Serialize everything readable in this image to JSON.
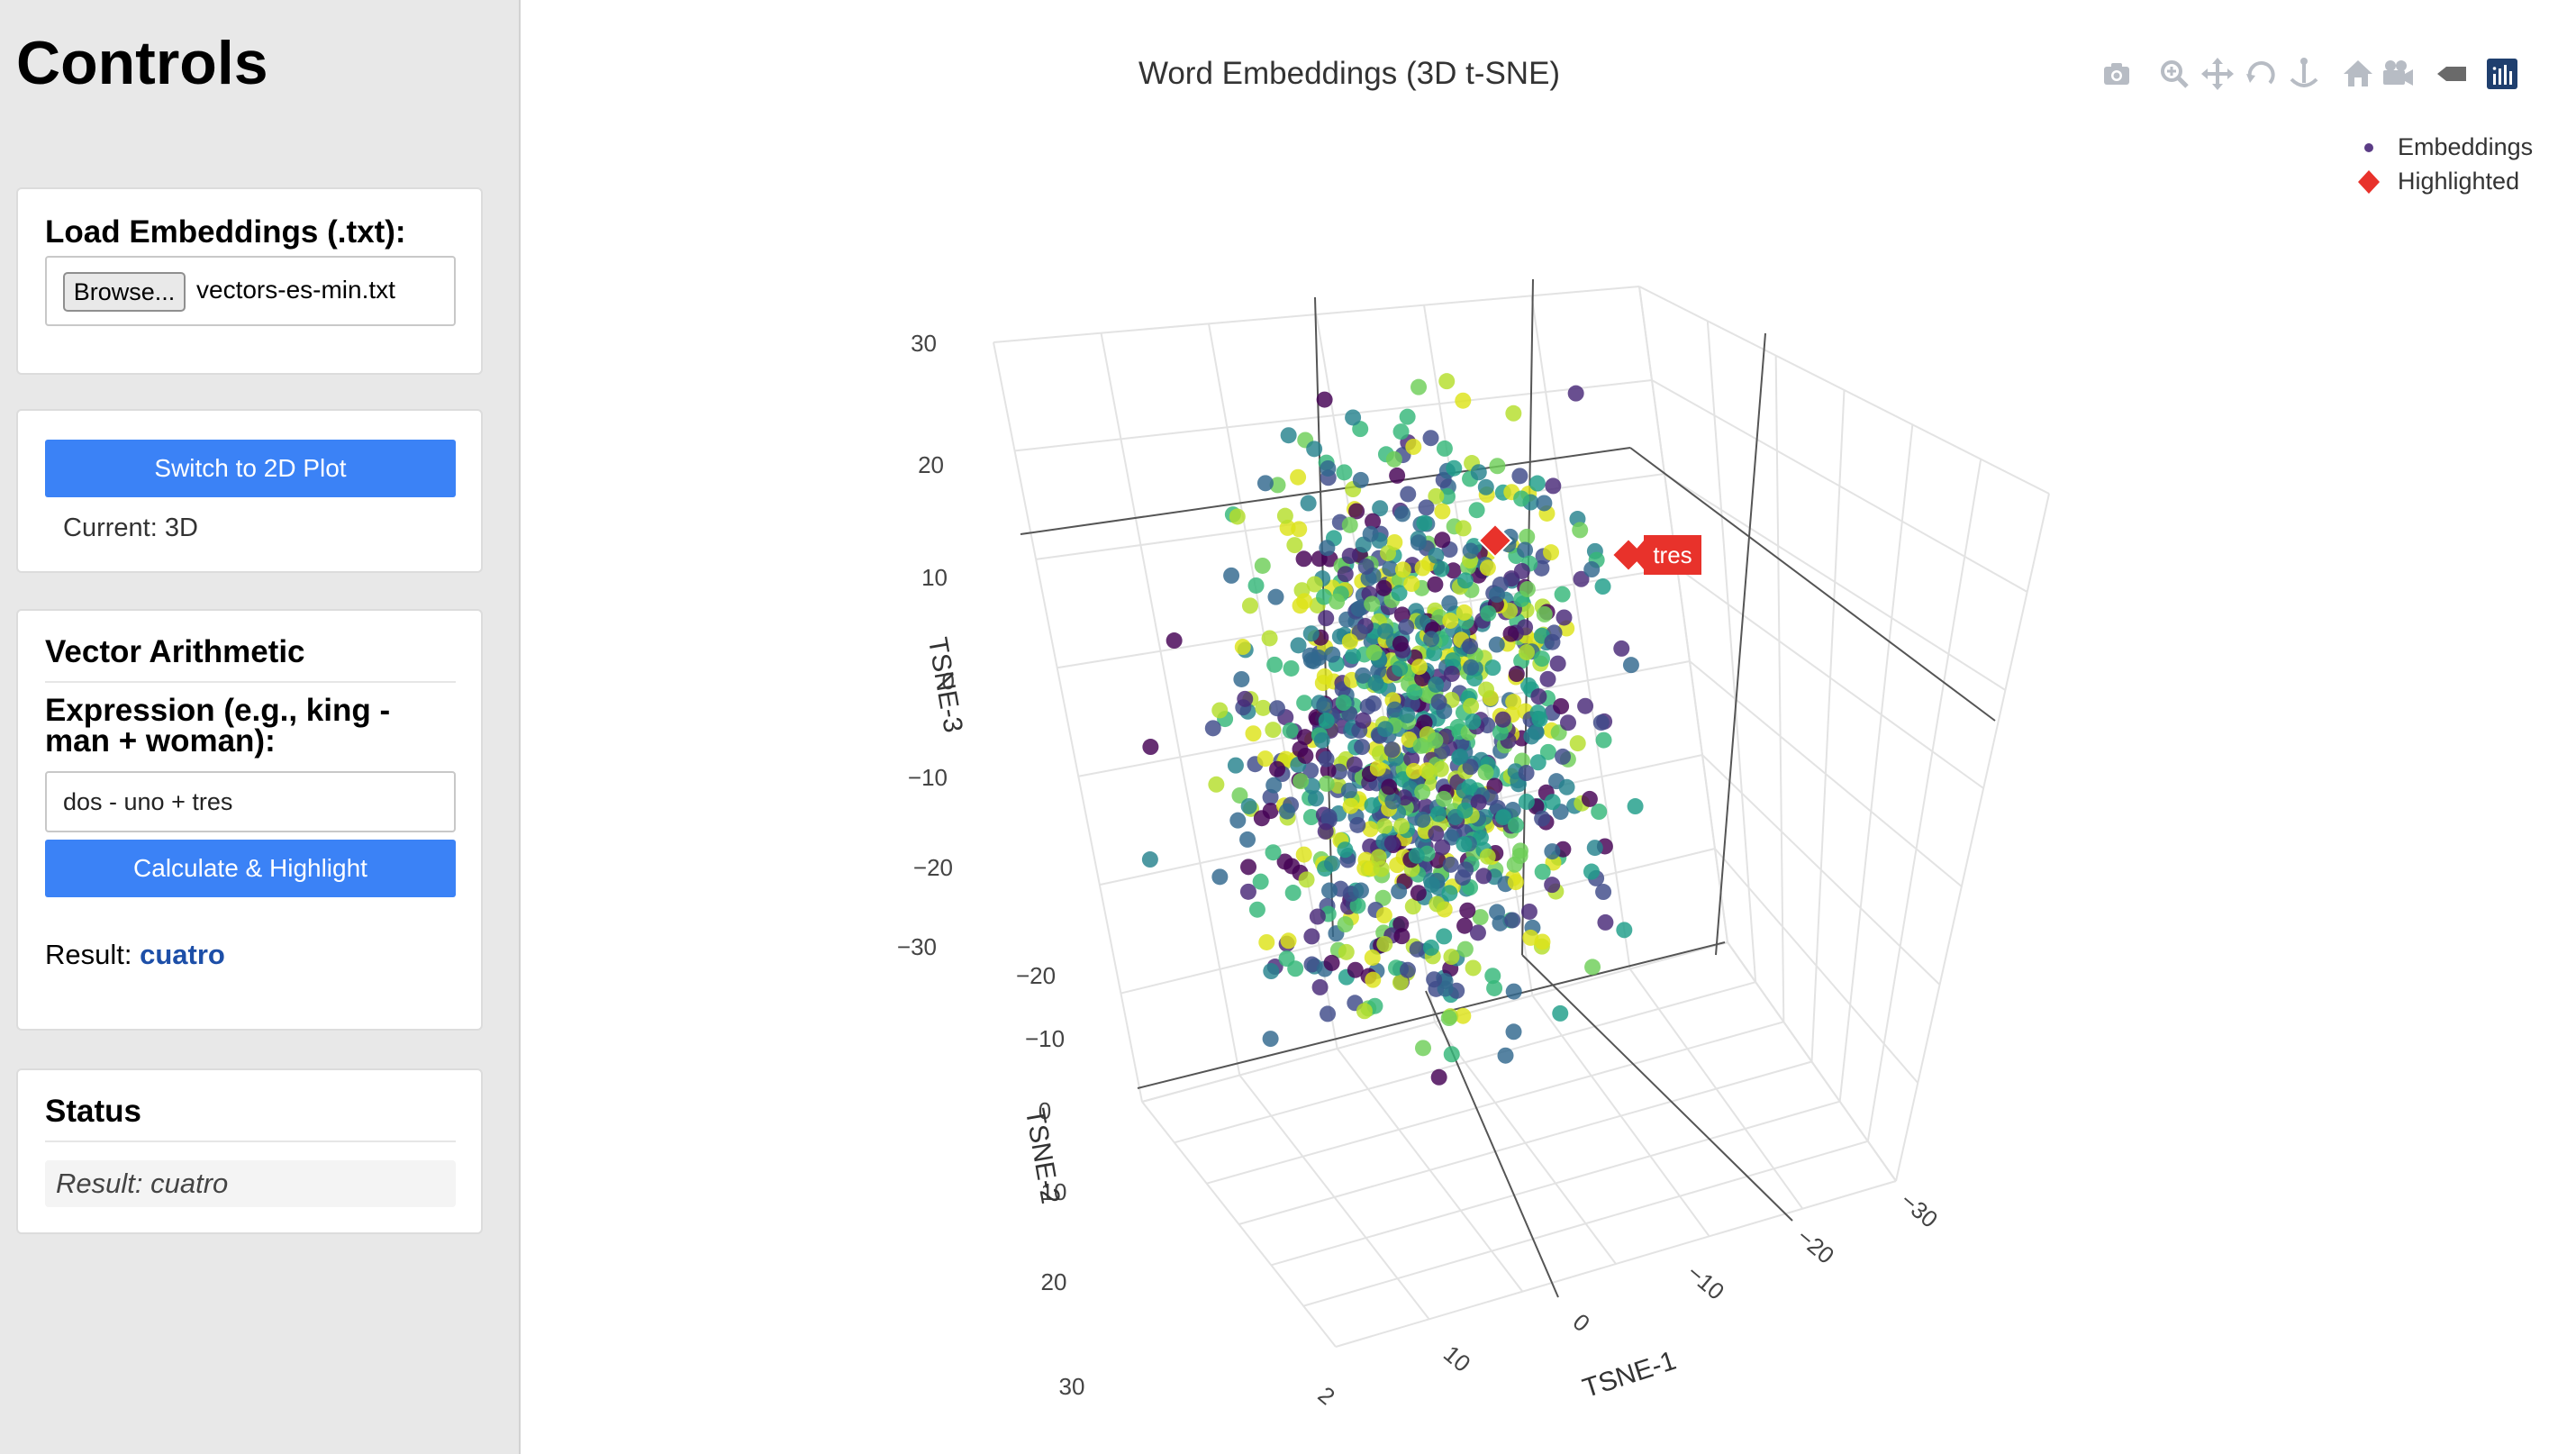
{
  "sidebar": {
    "title": "Controls",
    "load": {
      "label": "Load Embeddings (.txt):",
      "browse_label": "Browse...",
      "file_name": "vectors-es-min.txt"
    },
    "view": {
      "switch_label": "Switch to 2D Plot",
      "current": "Current: 3D"
    },
    "vector": {
      "title": "Vector Arithmetic",
      "expression_label": "Expression (e.g., king - man + woman):",
      "expression_value": "dos - uno + tres",
      "calculate_label": "Calculate & Highlight",
      "result_prefix": "Result: ",
      "result_word": "cuatro"
    },
    "status": {
      "title": "Status",
      "message": "Result: cuatro"
    }
  },
  "plot": {
    "title": "Word Embeddings (3D t-SNE)",
    "legend": [
      "Embeddings",
      "Highlighted"
    ],
    "highlight_label": "tres",
    "modebar": [
      "camera-icon",
      "zoom-icon",
      "pan-icon",
      "orbit-rotation-icon",
      "turntable-rotation-icon",
      "home-icon",
      "reset-camera-icon",
      "hover-toggle-icon",
      "plotly-logo-icon"
    ],
    "colors": {
      "accent": "#3b82f6",
      "result_word": "#1d4fa8",
      "highlight": "#e8322b",
      "viridis": [
        "#440154",
        "#482878",
        "#3e4a89",
        "#31688e",
        "#26828e",
        "#1f9e89",
        "#35b779",
        "#6ece58",
        "#b5de2b",
        "#dde318"
      ]
    }
  },
  "chart_data": {
    "type": "scatter",
    "projection": "3d",
    "title": "Word Embeddings (3D t-SNE)",
    "axes": {
      "x": {
        "label": "TSNE-1",
        "ticks": [
          "−30",
          "−20",
          "−10",
          "0",
          "10",
          "2"
        ]
      },
      "y": {
        "label": "TSNE-2",
        "ticks": [
          "−20",
          "−10",
          "0",
          "10",
          "20",
          "30"
        ]
      },
      "z": {
        "label": "TSNE-3",
        "ticks": [
          "30",
          "20",
          "10",
          "0",
          "−10",
          "−20",
          "−30"
        ]
      }
    },
    "ranges": {
      "x": [
        -35,
        30
      ],
      "y": [
        -25,
        35
      ],
      "z": [
        -35,
        35
      ]
    },
    "series": [
      {
        "name": "Embeddings",
        "marker": "circle",
        "colorscale": "viridis",
        "approx_points": 1000
      },
      {
        "name": "Highlighted",
        "marker": "diamond",
        "color": "#e8322b",
        "labels": [
          "tres"
        ]
      }
    ],
    "legend_position": "top-right",
    "grid": true
  }
}
